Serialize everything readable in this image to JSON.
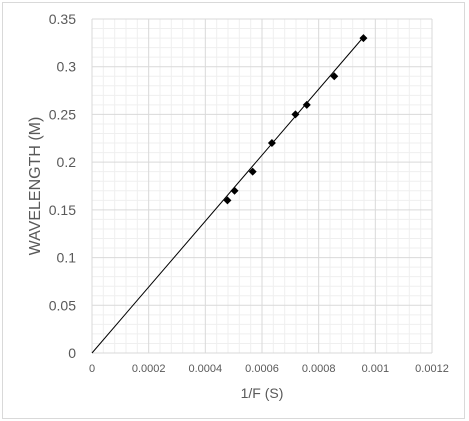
{
  "chart_data": {
    "type": "scatter",
    "xlabel": "1/F (S)",
    "ylabel": "WAVELENGTH (M)",
    "xlim": [
      0,
      0.0012
    ],
    "ylim": [
      0,
      0.35
    ],
    "x_ticks": [
      "0",
      "0.0002",
      "0.0004",
      "0.0006",
      "0.0008",
      "0.001",
      "0.0012"
    ],
    "y_ticks": [
      "0",
      "0.05",
      "0.1",
      "0.15",
      "0.2",
      "0.25",
      "0.3",
      "0.35"
    ],
    "x_tick_values": [
      0,
      0.0002,
      0.0004,
      0.0006,
      0.0008,
      0.001,
      0.0012
    ],
    "y_tick_values": [
      0,
      0.05,
      0.1,
      0.15,
      0.2,
      0.25,
      0.3,
      0.35
    ],
    "grid": true,
    "minor_grid": true,
    "series": [
      {
        "marker": "diamond",
        "color": "#000000",
        "points": [
          {
            "x": 0.000478,
            "y": 0.16
          },
          {
            "x": 0.000503,
            "y": 0.17
          },
          {
            "x": 0.000567,
            "y": 0.19
          },
          {
            "x": 0.000635,
            "y": 0.22
          },
          {
            "x": 0.000718,
            "y": 0.25
          },
          {
            "x": 0.000758,
            "y": 0.26
          },
          {
            "x": 0.000855,
            "y": 0.29
          },
          {
            "x": 0.000958,
            "y": 0.33
          }
        ]
      }
    ],
    "trendline": {
      "type": "linear",
      "from": {
        "x": 0,
        "y": 0
      },
      "to": {
        "x": 0.000958,
        "y": 0.331
      },
      "color": "#000000"
    },
    "colors": {
      "major_grid": "#d9d9d9",
      "minor_grid": "#efefef",
      "text": "#595959"
    }
  }
}
